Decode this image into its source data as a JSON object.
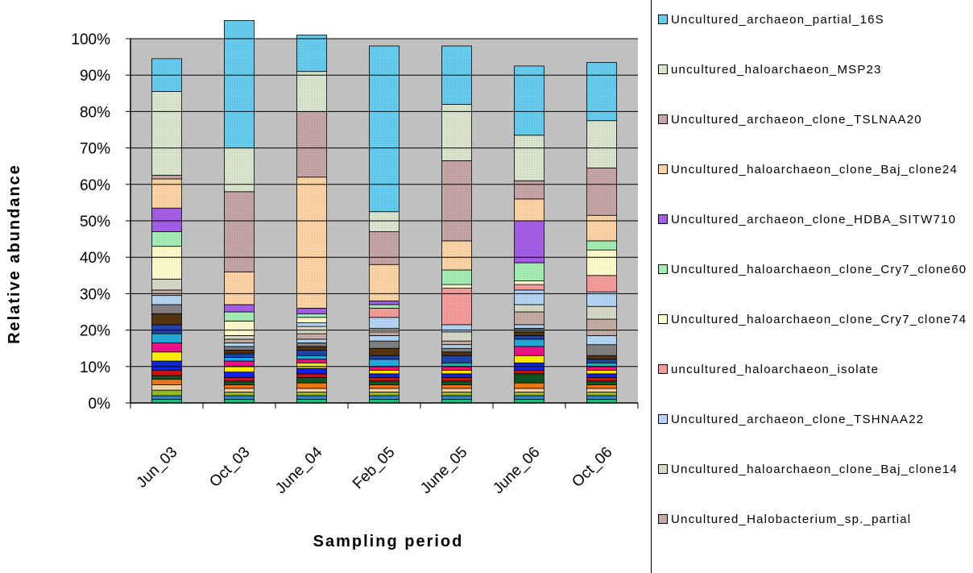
{
  "chart_data": {
    "type": "bar",
    "stacked": true,
    "percent": true,
    "xlabel": "Sampling period",
    "ylabel": "Relative abundance",
    "ylim": [
      0,
      100
    ],
    "yticks": [
      "0%",
      "10%",
      "20%",
      "30%",
      "40%",
      "50%",
      "60%",
      "70%",
      "80%",
      "90%",
      "100%"
    ],
    "categories": [
      "Jun_03",
      "Oct_03",
      "June_04",
      "Feb_05",
      "June_05",
      "June_06",
      "Oct_06"
    ],
    "plot_background": "#c0c0c0",
    "legend_position": "right",
    "series": [
      {
        "name": "Uncultured_archaeon_partial_16S",
        "color": "#66ccee",
        "values": [
          9,
          35,
          10,
          45.5,
          16,
          19,
          16
        ]
      },
      {
        "name": "uncultured_haloarchaeon_MSP23",
        "color": "#d8e4cc",
        "values": [
          23,
          12,
          11,
          5.5,
          15.5,
          12.5,
          13
        ]
      },
      {
        "name": "Uncultured_archaeon_clone_TSLNAA20",
        "color": "#c4a4a4",
        "values": [
          1,
          22,
          18,
          9,
          22,
          5,
          13
        ]
      },
      {
        "name": "Uncultured_haloarchaeon_clone_Baj_clone24",
        "color": "#fcd3a4",
        "values": [
          8,
          9,
          36,
          10,
          8,
          6,
          7
        ]
      },
      {
        "name": "Uncultured_archaeon_clone_HDBA_SITW710",
        "color": "#a45ee6",
        "values": [
          6.5,
          2,
          1.5,
          1,
          0,
          11.5,
          0
        ]
      },
      {
        "name": "Uncultured_haloarchaeon_clone_Cry7_clone60",
        "color": "#a4ecb4",
        "values": [
          4,
          2.5,
          1,
          1,
          4,
          5,
          2.5
        ]
      },
      {
        "name": "Uncultured_haloarchaeon_clone_Cry7_clone74",
        "color": "#fffbcc",
        "values": [
          9,
          4,
          1.5,
          0,
          1,
          1,
          7
        ]
      },
      {
        "name": "uncultured_haloarchaeon_isolate",
        "color": "#f49c9c",
        "values": [
          0,
          0,
          0,
          2.5,
          10,
          1.5,
          4.5
        ]
      },
      {
        "name": "Uncultured_archaeon_clone_TSHNAA22",
        "color": "#b4d4f4",
        "values": [
          0,
          0,
          1,
          3,
          2,
          4,
          4
        ]
      },
      {
        "name": "Uncultured_haloarchaeon_clone_Baj_clone14",
        "color": "#d4d8c4",
        "values": [
          3,
          1,
          2,
          1,
          2.5,
          2,
          3.5
        ]
      },
      {
        "name": "Uncultured_Halobacterium_sp._partial",
        "color": "#c4aca4",
        "values": [
          1.5,
          1,
          1.5,
          1,
          1,
          3.5,
          4.5
        ]
      }
    ],
    "other_segments": [
      {
        "values": [
          2.5,
          1,
          1,
          1.5,
          1,
          1,
          2.5
        ],
        "color": "#b4d4f4"
      },
      {
        "values": [
          2.5,
          1,
          1,
          2,
          1,
          1,
          3
        ],
        "color": "#808080"
      },
      {
        "values": [
          3,
          1,
          1,
          2,
          1,
          1,
          1
        ],
        "color": "#553311"
      },
      {
        "values": [
          2.5,
          1,
          1.5,
          1,
          2,
          1,
          1
        ],
        "color": "#2244aa"
      },
      {
        "values": [
          2.5,
          1,
          1,
          2,
          1,
          2,
          1
        ],
        "color": "#22aadd"
      },
      {
        "values": [
          2.5,
          1.5,
          1,
          1,
          1,
          2.5,
          1
        ],
        "color": "#ee1188"
      },
      {
        "values": [
          2.5,
          1.5,
          1.5,
          1,
          1,
          2,
          1
        ],
        "color": "#ffee00"
      },
      {
        "values": [
          2.5,
          1.5,
          1.5,
          1,
          1,
          2,
          1
        ],
        "color": "#1122ee"
      },
      {
        "values": [
          1.5,
          1,
          1,
          1,
          1,
          1,
          1
        ],
        "color": "#cc1111"
      },
      {
        "values": [
          1,
          1,
          1.5,
          1,
          1,
          2.5,
          1
        ],
        "color": "#115522"
      },
      {
        "values": [
          1.5,
          1,
          1.5,
          1,
          1,
          1.5,
          1
        ],
        "color": "#ee7711"
      },
      {
        "values": [
          1.5,
          1,
          1,
          1,
          1,
          1,
          1
        ],
        "color": "#fcd3a4"
      },
      {
        "values": [
          1.5,
          1,
          1,
          1,
          1,
          1,
          1
        ],
        "color": "#99bb22"
      },
      {
        "values": [
          1,
          1,
          1,
          1,
          1,
          1,
          1
        ],
        "color": "#3388cc"
      },
      {
        "values": [
          1,
          1,
          1,
          1,
          1,
          1,
          1
        ],
        "color": "#22bb77"
      }
    ]
  }
}
